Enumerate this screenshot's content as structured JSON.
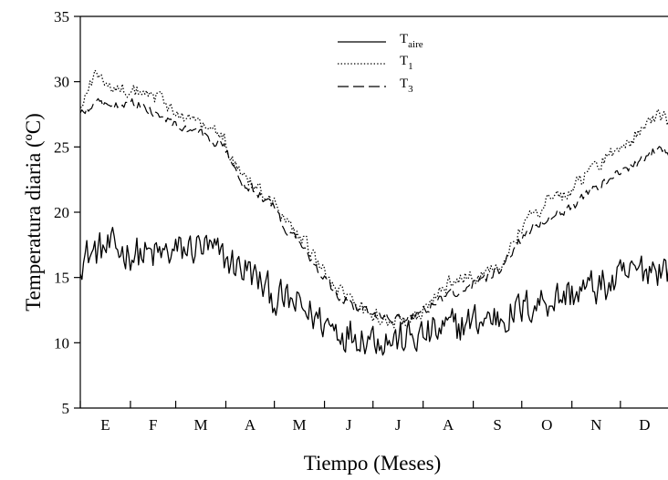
{
  "chart_data": {
    "type": "line",
    "title": "",
    "xlabel": "Tiempo (Meses)",
    "ylabel": "Temperatura diaria (ºC)",
    "ylim": [
      5,
      35
    ],
    "yticks": [
      5,
      10,
      15,
      20,
      25,
      30,
      35
    ],
    "xlim": [
      1,
      365
    ],
    "months": [
      "E",
      "F",
      "M",
      "A",
      "M",
      "J",
      "J",
      "A",
      "S",
      "O",
      "N",
      "D"
    ],
    "grid": false,
    "legend": {
      "position": "top-center"
    },
    "series": [
      {
        "base": "T",
        "sub": "aire",
        "style": "solid",
        "color": "#000000",
        "anchors": [
          [
            1,
            16.5
          ],
          [
            15,
            17.2
          ],
          [
            30,
            17.0
          ],
          [
            45,
            16.6
          ],
          [
            60,
            16.9
          ],
          [
            75,
            17.4
          ],
          [
            90,
            16.4
          ],
          [
            105,
            15.5
          ],
          [
            120,
            13.5
          ],
          [
            135,
            12.8
          ],
          [
            150,
            11.7
          ],
          [
            165,
            10.8
          ],
          [
            180,
            10.6
          ],
          [
            195,
            10.2
          ],
          [
            210,
            10.4
          ],
          [
            225,
            10.9
          ],
          [
            240,
            11.5
          ],
          [
            255,
            11.9
          ],
          [
            270,
            12.3
          ],
          [
            285,
            13.2
          ],
          [
            300,
            13.6
          ],
          [
            315,
            14.1
          ],
          [
            330,
            14.5
          ],
          [
            345,
            15.4
          ],
          [
            355,
            15.9
          ],
          [
            365,
            15.6
          ]
        ]
      },
      {
        "base": "T",
        "sub": "1",
        "style": "dotted",
        "color": "#000000",
        "anchors": [
          [
            1,
            28.0
          ],
          [
            10,
            30.5
          ],
          [
            20,
            29.8
          ],
          [
            30,
            29.4
          ],
          [
            40,
            29.0
          ],
          [
            50,
            28.7
          ],
          [
            60,
            27.6
          ],
          [
            70,
            27.2
          ],
          [
            80,
            26.4
          ],
          [
            90,
            25.6
          ],
          [
            100,
            23.0
          ],
          [
            110,
            22.0
          ],
          [
            120,
            21.0
          ],
          [
            130,
            18.8
          ],
          [
            140,
            17.6
          ],
          [
            150,
            15.6
          ],
          [
            160,
            14.0
          ],
          [
            170,
            12.9
          ],
          [
            180,
            12.3
          ],
          [
            190,
            11.8
          ],
          [
            200,
            11.6
          ],
          [
            210,
            12.0
          ],
          [
            220,
            13.4
          ],
          [
            230,
            14.6
          ],
          [
            240,
            15.0
          ],
          [
            250,
            15.1
          ],
          [
            260,
            16.1
          ],
          [
            270,
            18.2
          ],
          [
            280,
            19.6
          ],
          [
            290,
            20.9
          ],
          [
            300,
            21.4
          ],
          [
            310,
            22.4
          ],
          [
            320,
            23.6
          ],
          [
            330,
            24.5
          ],
          [
            340,
            25.3
          ],
          [
            350,
            26.8
          ],
          [
            358,
            27.6
          ],
          [
            365,
            27.0
          ]
        ]
      },
      {
        "base": "T",
        "sub": "3",
        "style": "dashed",
        "color": "#000000",
        "anchors": [
          [
            1,
            27.4
          ],
          [
            10,
            28.4
          ],
          [
            20,
            28.2
          ],
          [
            30,
            28.5
          ],
          [
            40,
            28.2
          ],
          [
            50,
            27.3
          ],
          [
            60,
            26.6
          ],
          [
            70,
            26.2
          ],
          [
            80,
            25.7
          ],
          [
            90,
            25.0
          ],
          [
            100,
            22.4
          ],
          [
            110,
            21.6
          ],
          [
            120,
            20.4
          ],
          [
            130,
            18.5
          ],
          [
            140,
            17.2
          ],
          [
            150,
            15.3
          ],
          [
            160,
            13.7
          ],
          [
            170,
            12.8
          ],
          [
            180,
            12.4
          ],
          [
            190,
            12.0
          ],
          [
            200,
            11.8
          ],
          [
            210,
            12.2
          ],
          [
            220,
            13.0
          ],
          [
            230,
            13.8
          ],
          [
            240,
            14.4
          ],
          [
            250,
            14.7
          ],
          [
            260,
            15.6
          ],
          [
            270,
            17.4
          ],
          [
            280,
            18.7
          ],
          [
            290,
            19.7
          ],
          [
            300,
            20.1
          ],
          [
            310,
            20.9
          ],
          [
            320,
            21.9
          ],
          [
            330,
            22.7
          ],
          [
            340,
            23.4
          ],
          [
            350,
            24.1
          ],
          [
            358,
            24.8
          ],
          [
            365,
            24.6
          ]
        ]
      }
    ]
  }
}
